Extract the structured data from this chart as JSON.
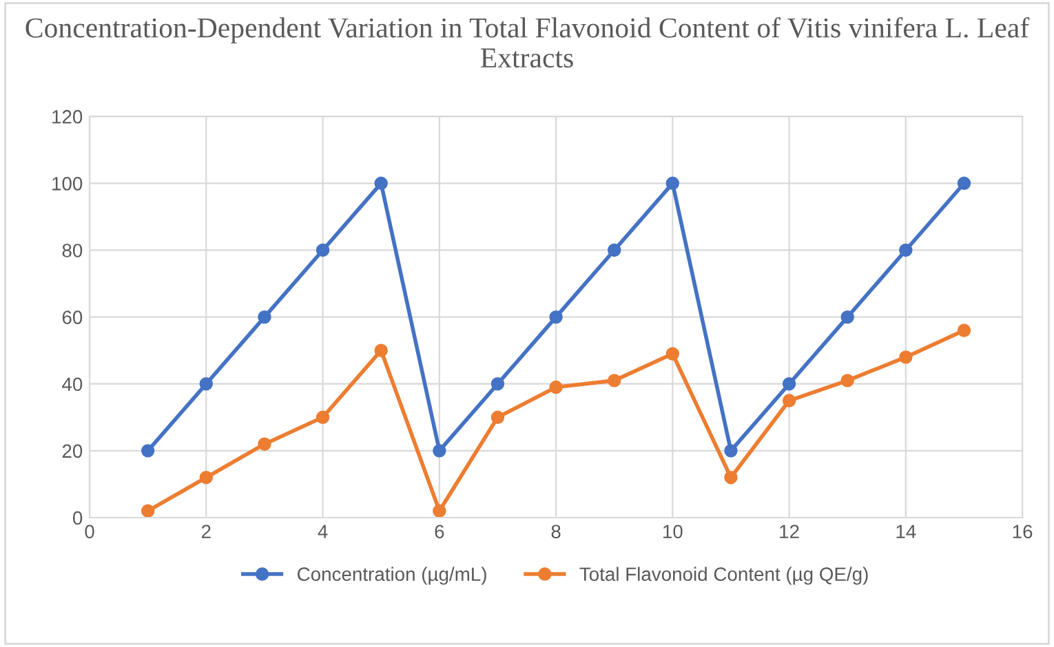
{
  "chart_data": {
    "type": "line",
    "title": "Concentration-Dependent Variation in Total Flavonoid Content of Vitis vinifera L. Leaf Extracts",
    "x": [
      1,
      2,
      3,
      4,
      5,
      6,
      7,
      8,
      9,
      10,
      11,
      12,
      13,
      14,
      15
    ],
    "series": [
      {
        "name": "Concentration (µg/mL)",
        "color": "#4472c4",
        "values": [
          20,
          40,
          60,
          80,
          100,
          20,
          40,
          60,
          80,
          100,
          20,
          40,
          60,
          80,
          100
        ]
      },
      {
        "name": "Total Flavonoid Content (µg QE/g)",
        "color": "#ed7d31",
        "values": [
          2,
          12,
          22,
          30,
          50,
          2,
          30,
          39,
          41,
          49,
          12,
          35,
          41,
          48,
          56
        ]
      }
    ],
    "xlim": [
      0,
      16
    ],
    "xticks": [
      0,
      2,
      4,
      6,
      8,
      10,
      12,
      14,
      16
    ],
    "ylim": [
      0,
      120
    ],
    "yticks": [
      0,
      20,
      40,
      60,
      80,
      100,
      120
    ],
    "grid": true,
    "legend": "bottom",
    "marker": "circle",
    "line_style": "solid"
  }
}
